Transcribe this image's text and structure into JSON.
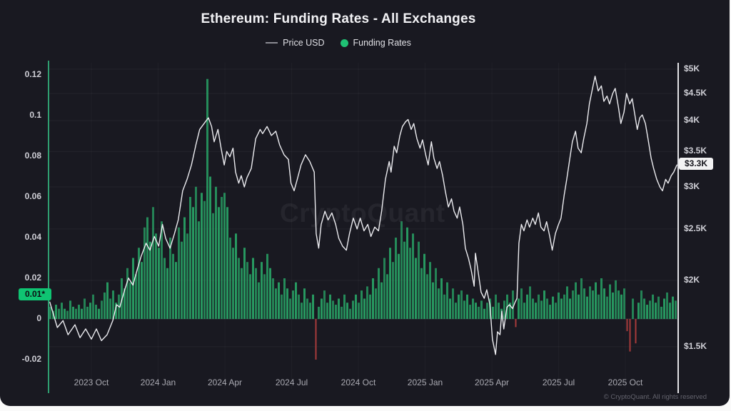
{
  "header": {
    "title": "Ethereum: Funding Rates - All Exchanges",
    "legend": [
      {
        "type": "line",
        "label": "Price USD",
        "marker_color": "#8b8b93"
      },
      {
        "type": "dot",
        "label": "Funding Rates",
        "marker_color": "#1fc274"
      }
    ]
  },
  "watermark": "CryptoQuant",
  "footer": {
    "copyright": "© CryptoQuant. All rights reserved"
  },
  "colors": {
    "background": "#191921",
    "price_line": "#ececf0",
    "funding_positive": "#28a064",
    "funding_negative": "#a83a3a",
    "left_axis": "#2f9e70",
    "right_axis": "#e2e2e6",
    "funding_badge": "#0fc472",
    "price_badge": "#f2f2f3"
  },
  "chart_data": {
    "type": "line+bar",
    "title": "Ethereum: Funding Rates - All Exchanges",
    "legend_position": "top-center",
    "grid": "faint-horizontal",
    "x_axis": {
      "domain": [
        "2023 Aug",
        "2025 Nov"
      ],
      "ticks": [
        "2023 Oct",
        "2024 Jan",
        "2024 Apr",
        "2024 Jul",
        "2024 Oct",
        "2025 Jan",
        "2025 Apr",
        "2025 Jul",
        "2025 Oct"
      ]
    },
    "y_left": {
      "name": "Funding Rates",
      "scale": "linear",
      "range": [
        -0.03,
        0.125
      ],
      "ticks": [
        0.12,
        0.1,
        0.08,
        0.06,
        0.04,
        0.02,
        0,
        -0.02
      ],
      "tick_labels": [
        "0.12",
        "0.1",
        "0.08",
        "0.06",
        "0.04",
        "0.02",
        "0",
        "-0.02"
      ],
      "highlight": {
        "label": "0.01*",
        "value": 0.01
      }
    },
    "y_right": {
      "name": "Price USD",
      "scale": "log",
      "ticks": [
        5000,
        4500,
        4000,
        3500,
        3000,
        2500,
        2000,
        1500
      ],
      "tick_labels": [
        "$5K",
        "$4.5K",
        "$4K",
        "$3.5K",
        "$3K",
        "$2.5K",
        "$2K",
        "$1.5K"
      ],
      "highlight": {
        "label": "$3.3K",
        "value": 3300
      }
    },
    "price_series": {
      "name": "Price USD",
      "unit": "USD thousands",
      "x_unit": "percent of time axis (2023 Aug to 2025 Nov)",
      "points": [
        [
          0.2,
          1.82
        ],
        [
          1.4,
          1.63
        ],
        [
          2.3,
          1.68
        ],
        [
          3.1,
          1.58
        ],
        [
          4.2,
          1.65
        ],
        [
          5.0,
          1.56
        ],
        [
          5.9,
          1.62
        ],
        [
          6.8,
          1.55
        ],
        [
          7.6,
          1.62
        ],
        [
          8.4,
          1.54
        ],
        [
          9.3,
          1.58
        ],
        [
          10.2,
          1.68
        ],
        [
          10.8,
          1.8
        ],
        [
          11.3,
          1.78
        ],
        [
          12.1,
          1.92
        ],
        [
          12.7,
          2.02
        ],
        [
          13.4,
          1.96
        ],
        [
          14.1,
          2.1
        ],
        [
          14.7,
          2.22
        ],
        [
          15.5,
          2.35
        ],
        [
          16.1,
          2.28
        ],
        [
          16.8,
          2.42
        ],
        [
          17.5,
          2.32
        ],
        [
          18.1,
          2.55
        ],
        [
          18.6,
          2.4
        ],
        [
          19.3,
          2.3
        ],
        [
          20.0,
          2.45
        ],
        [
          20.6,
          2.6
        ],
        [
          21.3,
          2.95
        ],
        [
          22.0,
          3.1
        ],
        [
          22.7,
          3.3
        ],
        [
          23.4,
          3.6
        ],
        [
          24.0,
          3.85
        ],
        [
          24.7,
          3.95
        ],
        [
          25.4,
          4.05
        ],
        [
          25.9,
          3.9
        ],
        [
          26.3,
          3.65
        ],
        [
          26.9,
          3.85
        ],
        [
          27.4,
          3.55
        ],
        [
          27.9,
          3.3
        ],
        [
          28.3,
          3.5
        ],
        [
          28.8,
          3.42
        ],
        [
          29.3,
          3.55
        ],
        [
          29.7,
          3.2
        ],
        [
          30.2,
          3.05
        ],
        [
          30.6,
          3.15
        ],
        [
          31.1,
          3.0
        ],
        [
          31.5,
          3.12
        ],
        [
          32.2,
          3.25
        ],
        [
          32.9,
          3.7
        ],
        [
          33.6,
          3.85
        ],
        [
          34.0,
          3.78
        ],
        [
          34.7,
          3.9
        ],
        [
          35.4,
          3.75
        ],
        [
          36.1,
          3.82
        ],
        [
          36.7,
          3.6
        ],
        [
          37.4,
          3.45
        ],
        [
          38.1,
          3.38
        ],
        [
          38.5,
          3.05
        ],
        [
          39.0,
          2.95
        ],
        [
          39.5,
          3.1
        ],
        [
          40.1,
          3.3
        ],
        [
          40.8,
          3.45
        ],
        [
          41.5,
          3.35
        ],
        [
          42.2,
          3.2
        ],
        [
          42.5,
          2.45
        ],
        [
          42.9,
          2.3
        ],
        [
          43.3,
          2.55
        ],
        [
          43.9,
          2.7
        ],
        [
          44.4,
          2.6
        ],
        [
          45.0,
          2.68
        ],
        [
          45.6,
          2.55
        ],
        [
          46.1,
          2.4
        ],
        [
          46.7,
          2.32
        ],
        [
          47.3,
          2.28
        ],
        [
          47.8,
          2.45
        ],
        [
          48.4,
          2.62
        ],
        [
          49.0,
          2.5
        ],
        [
          49.5,
          2.62
        ],
        [
          50.1,
          2.48
        ],
        [
          50.7,
          2.55
        ],
        [
          51.2,
          2.42
        ],
        [
          51.8,
          2.52
        ],
        [
          52.4,
          2.48
        ],
        [
          52.9,
          2.7
        ],
        [
          53.5,
          3.1
        ],
        [
          54.1,
          3.35
        ],
        [
          54.4,
          3.2
        ],
        [
          54.9,
          3.58
        ],
        [
          55.3,
          3.48
        ],
        [
          55.8,
          3.75
        ],
        [
          56.2,
          3.9
        ],
        [
          56.7,
          3.98
        ],
        [
          57.1,
          4.02
        ],
        [
          57.6,
          3.85
        ],
        [
          58.0,
          3.95
        ],
        [
          58.5,
          3.7
        ],
        [
          59.0,
          3.55
        ],
        [
          59.4,
          3.68
        ],
        [
          59.9,
          3.45
        ],
        [
          60.3,
          3.3
        ],
        [
          60.8,
          3.65
        ],
        [
          61.2,
          3.4
        ],
        [
          61.7,
          3.25
        ],
        [
          62.1,
          3.35
        ],
        [
          62.6,
          3.15
        ],
        [
          63.0,
          2.95
        ],
        [
          63.5,
          2.75
        ],
        [
          64.0,
          2.85
        ],
        [
          64.4,
          2.7
        ],
        [
          64.9,
          2.62
        ],
        [
          65.3,
          2.75
        ],
        [
          65.8,
          2.55
        ],
        [
          66.2,
          2.3
        ],
        [
          66.7,
          2.2
        ],
        [
          67.1,
          2.1
        ],
        [
          67.6,
          1.95
        ],
        [
          67.8,
          2.25
        ],
        [
          68.3,
          2.05
        ],
        [
          68.7,
          1.9
        ],
        [
          69.2,
          1.85
        ],
        [
          69.6,
          1.92
        ],
        [
          70.1,
          1.8
        ],
        [
          70.5,
          1.55
        ],
        [
          71.0,
          1.45
        ],
        [
          71.3,
          1.6
        ],
        [
          71.7,
          1.58
        ],
        [
          72.0,
          1.75
        ],
        [
          72.3,
          1.62
        ],
        [
          72.8,
          1.78
        ],
        [
          73.2,
          1.8
        ],
        [
          73.7,
          1.77
        ],
        [
          74.1,
          1.82
        ],
        [
          74.4,
          1.85
        ],
        [
          74.7,
          2.35
        ],
        [
          75.1,
          2.55
        ],
        [
          75.5,
          2.48
        ],
        [
          76.0,
          2.6
        ],
        [
          76.4,
          2.52
        ],
        [
          76.9,
          2.62
        ],
        [
          77.3,
          2.55
        ],
        [
          77.8,
          2.68
        ],
        [
          78.2,
          2.52
        ],
        [
          78.7,
          2.48
        ],
        [
          79.1,
          2.58
        ],
        [
          79.6,
          2.42
        ],
        [
          80.0,
          2.28
        ],
        [
          80.5,
          2.45
        ],
        [
          81.0,
          2.55
        ],
        [
          81.4,
          2.62
        ],
        [
          81.9,
          2.9
        ],
        [
          82.3,
          3.1
        ],
        [
          82.8,
          3.4
        ],
        [
          83.2,
          3.65
        ],
        [
          83.7,
          3.82
        ],
        [
          84.1,
          3.55
        ],
        [
          84.6,
          3.48
        ],
        [
          85.0,
          3.7
        ],
        [
          85.5,
          3.95
        ],
        [
          85.9,
          4.3
        ],
        [
          86.4,
          4.6
        ],
        [
          86.8,
          4.85
        ],
        [
          87.3,
          4.55
        ],
        [
          87.8,
          4.65
        ],
        [
          88.2,
          4.35
        ],
        [
          88.7,
          4.45
        ],
        [
          89.1,
          4.3
        ],
        [
          89.6,
          4.5
        ],
        [
          90.0,
          4.6
        ],
        [
          90.5,
          4.25
        ],
        [
          90.9,
          3.95
        ],
        [
          91.4,
          4.15
        ],
        [
          91.8,
          4.5
        ],
        [
          92.3,
          4.3
        ],
        [
          92.7,
          4.4
        ],
        [
          93.2,
          4.05
        ],
        [
          93.5,
          3.85
        ],
        [
          93.9,
          4.05
        ],
        [
          94.3,
          4.1
        ],
        [
          94.8,
          3.95
        ],
        [
          95.2,
          3.7
        ],
        [
          95.7,
          3.4
        ],
        [
          96.1,
          3.25
        ],
        [
          96.6,
          3.1
        ],
        [
          97.1,
          3.0
        ],
        [
          97.5,
          2.95
        ],
        [
          98.0,
          3.1
        ],
        [
          98.4,
          3.05
        ],
        [
          98.9,
          3.15
        ],
        [
          99.3,
          3.2
        ],
        [
          99.8,
          3.3
        ]
      ]
    },
    "funding_series": {
      "name": "Funding Rates",
      "positive_color": "#28a064",
      "negative_color": "#a83a3a",
      "max_value": 0.118,
      "values": [
        0.006,
        0.004,
        0.007,
        0.005,
        0.008,
        0.005,
        0.004,
        0.009,
        0.006,
        0.005,
        0.007,
        0.005,
        0.01,
        0.006,
        0.008,
        0.012,
        0.007,
        0.005,
        0.009,
        0.013,
        0.018,
        0.01,
        0.014,
        0.008,
        0.012,
        0.02,
        0.015,
        0.025,
        0.018,
        0.03,
        0.022,
        0.035,
        0.028,
        0.045,
        0.05,
        0.038,
        0.055,
        0.042,
        0.035,
        0.048,
        0.03,
        0.025,
        0.04,
        0.032,
        0.028,
        0.045,
        0.038,
        0.05,
        0.042,
        0.06,
        0.055,
        0.065,
        0.048,
        0.062,
        0.058,
        0.118,
        0.07,
        0.052,
        0.065,
        0.055,
        0.06,
        0.062,
        0.055,
        0.04,
        0.035,
        0.042,
        0.03,
        0.025,
        0.035,
        0.028,
        0.022,
        0.03,
        0.025,
        0.018,
        0.028,
        0.022,
        0.032,
        0.025,
        0.02,
        0.015,
        0.018,
        0.012,
        0.02,
        0.015,
        0.01,
        0.014,
        0.018,
        0.012,
        0.008,
        0.015,
        0.01,
        0.008,
        0.012,
        -0.02,
        0.006,
        0.01,
        0.014,
        0.008,
        0.012,
        0.009,
        0.007,
        0.01,
        0.006,
        0.012,
        0.008,
        0.005,
        0.009,
        0.012,
        0.008,
        0.014,
        0.01,
        0.016,
        0.012,
        0.02,
        0.015,
        0.025,
        0.018,
        0.03,
        0.022,
        0.035,
        0.028,
        0.04,
        0.032,
        0.048,
        0.038,
        0.045,
        0.035,
        0.042,
        0.03,
        0.038,
        0.025,
        0.032,
        0.022,
        0.028,
        0.018,
        0.025,
        0.015,
        0.02,
        0.012,
        0.018,
        0.01,
        0.015,
        0.008,
        0.012,
        0.014,
        0.009,
        0.012,
        0.007,
        0.01,
        0.008,
        0.006,
        0.009,
        0.005,
        0.008,
        0.01,
        0.006,
        0.012,
        0.008,
        0.005,
        0.009,
        0.012,
        0.008,
        0.014,
        -0.004,
        0.01,
        0.015,
        0.008,
        0.012,
        0.016,
        0.01,
        0.008,
        0.012,
        0.009,
        0.014,
        0.01,
        0.007,
        0.011,
        0.008,
        0.013,
        0.01,
        0.012,
        0.016,
        0.01,
        0.014,
        0.018,
        0.012,
        0.02,
        0.015,
        0.011,
        0.016,
        0.014,
        0.018,
        0.012,
        0.02,
        0.015,
        0.011,
        0.017,
        0.013,
        0.019,
        0.014,
        0.012,
        0.015,
        -0.006,
        -0.016,
        0.01,
        -0.012,
        0.008,
        0.014,
        0.01,
        0.007,
        0.009,
        0.012,
        0.008,
        0.011,
        0.006,
        0.01,
        0.013,
        0.008,
        0.011,
        0.009
      ]
    }
  }
}
